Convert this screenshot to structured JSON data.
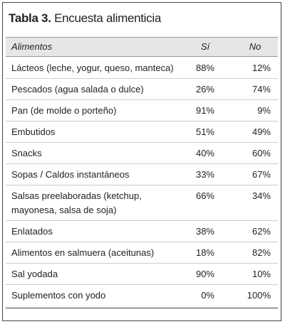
{
  "header": {
    "label": "Tabla 3.",
    "title": "Encuesta alimenticia"
  },
  "table": {
    "columns": [
      "Alimentos",
      "Sí",
      "No"
    ],
    "rows": [
      [
        "Lácteos (leche, yogur, queso, manteca)",
        "88%",
        "12%"
      ],
      [
        "Pescados (agua salada o dulce)",
        "26%",
        "74%"
      ],
      [
        "Pan (de molde o porteño)",
        "91%",
        "9%"
      ],
      [
        "Embutidos",
        "51%",
        "49%"
      ],
      [
        "Snacks",
        "40%",
        "60%"
      ],
      [
        "Sopas / Caldos instantáneos",
        "33%",
        "67%"
      ],
      [
        "Salsas preelaboradas (ketchup, mayonesa, salsa de soja)",
        "66%",
        "34%"
      ],
      [
        "Enlatados",
        "38%",
        "62%"
      ],
      [
        "Alimentos en salmuera (aceitunas)",
        "18%",
        "82%"
      ],
      [
        "Sal yodada",
        "90%",
        "10%"
      ],
      [
        "Suplementos con yodo",
        "0%",
        "100%"
      ]
    ]
  }
}
